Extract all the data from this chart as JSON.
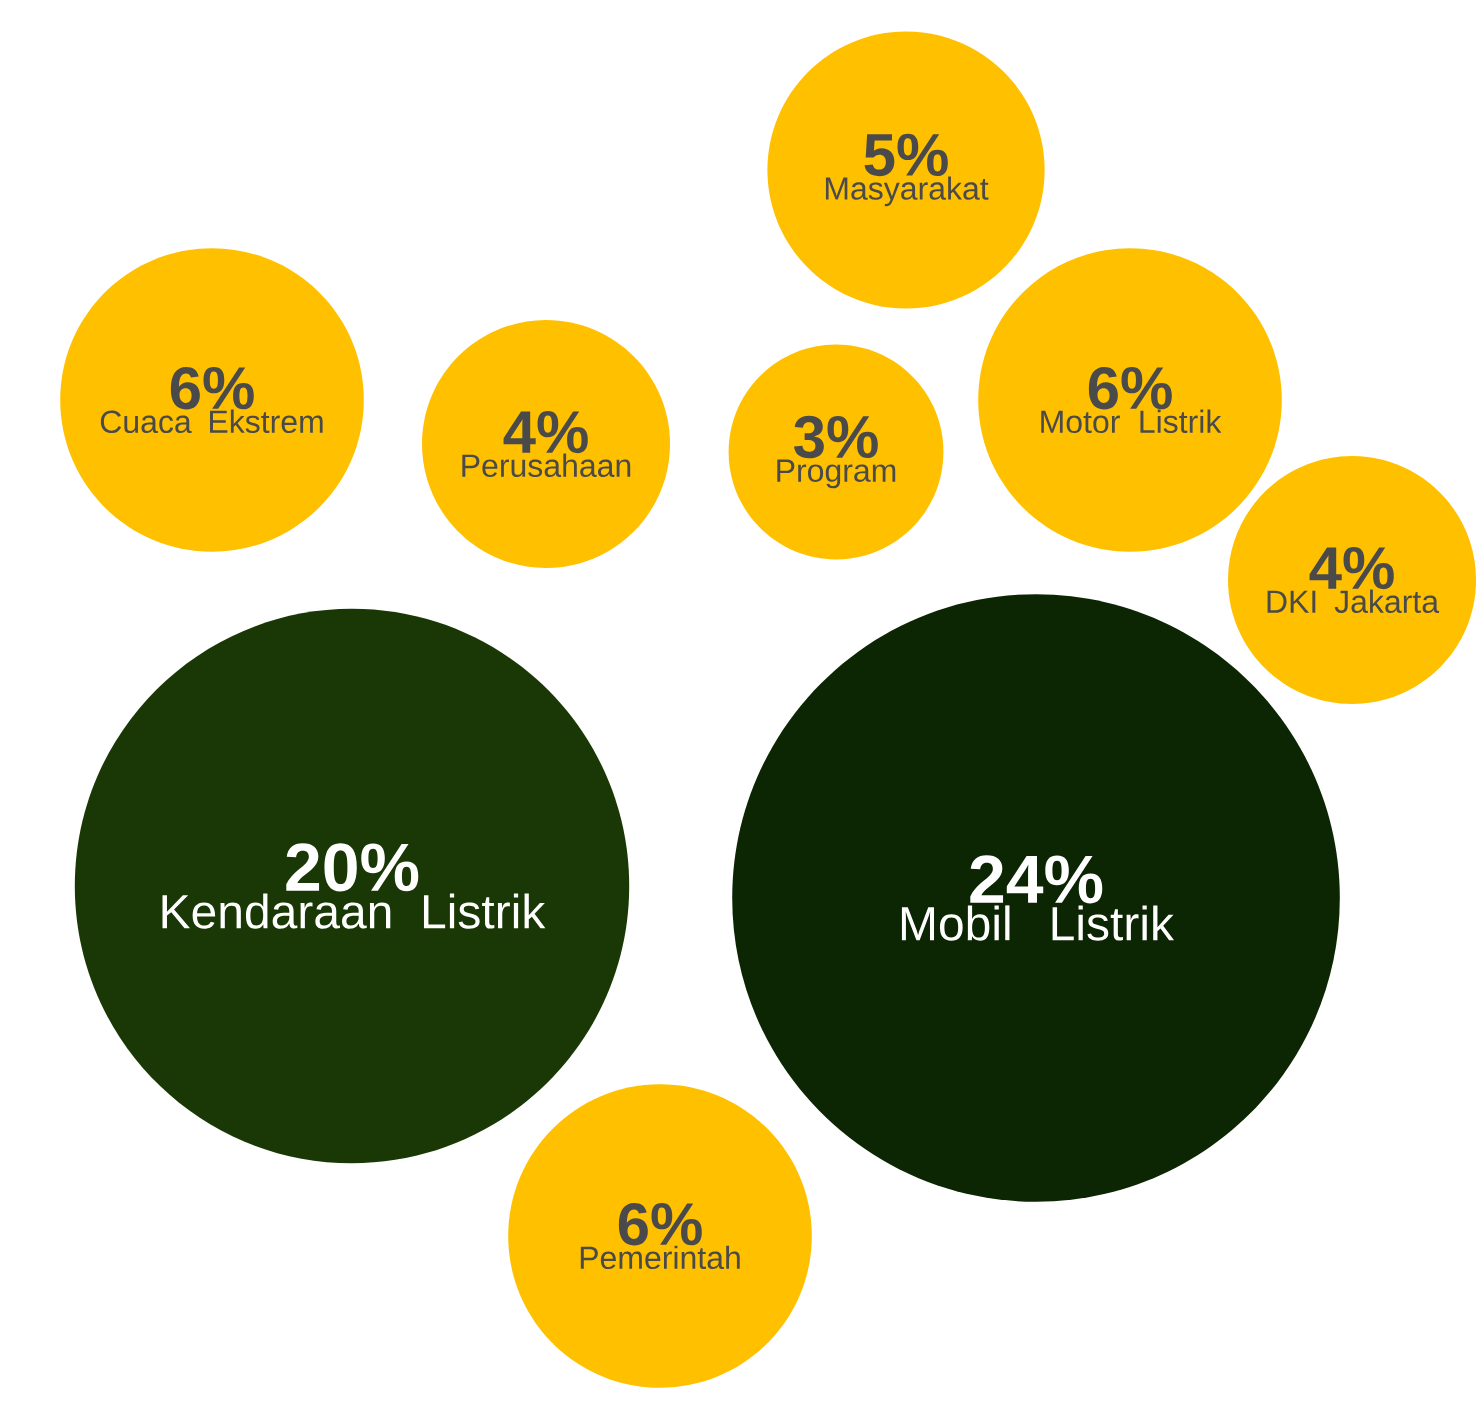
{
  "chart_data": {
    "type": "other",
    "categories": [
      "Masyarakat",
      "Cuaca Ekstrem",
      "Perusahaan",
      "Program",
      "Motor Listrik",
      "DKI Jakarta",
      "Kendaraan Listrik",
      "Mobil Listrik",
      "Pemerintah"
    ],
    "values": [
      5,
      6,
      4,
      3,
      6,
      4,
      20,
      24,
      6
    ],
    "value_labels": [
      "5%",
      "6%",
      "4%",
      "3%",
      "6%",
      "4%",
      "20%",
      "24%",
      "6%"
    ],
    "colors": [
      "#ffc000",
      "#ffc000",
      "#ffc000",
      "#ffc000",
      "#ffc000",
      "#ffc000",
      "#1a3805",
      "#0c2603",
      "#ffc000"
    ]
  }
}
